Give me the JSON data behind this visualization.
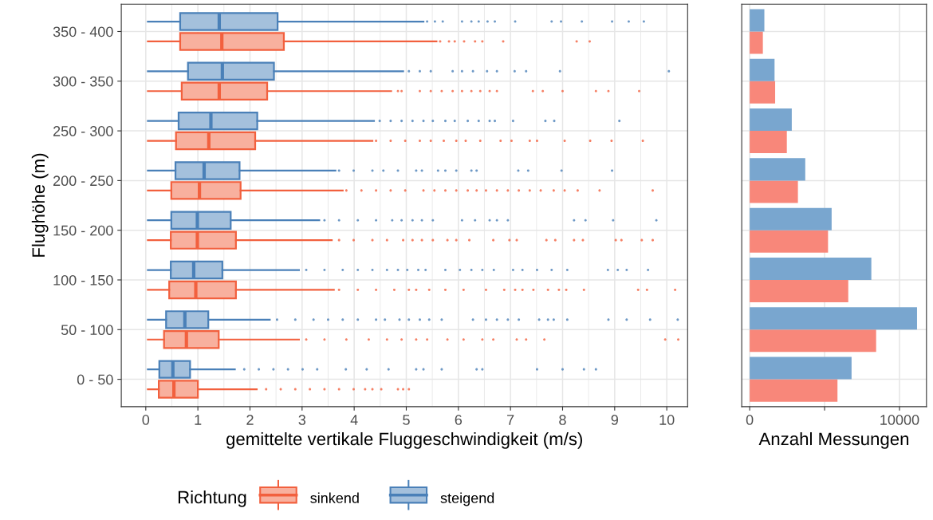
{
  "chart_data": [
    {
      "type": "box",
      "orientation": "horizontal",
      "xlabel": "gemittelte vertikale Fluggeschwindigkeit (m/s)",
      "ylabel": "Flughöhe (m)",
      "legend_title": "Richtung",
      "legend": "bottom",
      "grid": true,
      "categories": [
        "350 - 400",
        "300 - 350",
        "250 - 300",
        "200 - 250",
        "150 - 200",
        "100 - 150",
        "50 - 100",
        "0 - 50"
      ],
      "xlim": [
        -0.47,
        10.4
      ],
      "xticks": [
        0,
        1,
        2,
        3,
        4,
        5,
        6,
        7,
        8,
        9,
        10
      ],
      "series": [
        {
          "name": "sinkend",
          "color": "#f2603e",
          "boxes": [
            {
              "low": 0.04,
              "q1": 0.66,
              "median": 1.46,
              "q3": 2.65,
              "high": 5.58,
              "outliers": [
                5.65,
                5.82,
                5.93,
                6.11,
                6.32,
                6.46,
                6.86,
                8.27,
                8.52
              ]
            },
            {
              "low": 0.04,
              "q1": 0.69,
              "median": 1.41,
              "q3": 2.33,
              "high": 4.71,
              "outliers": [
                4.84,
                4.91,
                5.26,
                5.47,
                5.68,
                5.89,
                6.07,
                6.25,
                6.42,
                6.6,
                6.74,
                7.43,
                7.62,
                8.0,
                8.64,
                8.88,
                9.47
              ]
            },
            {
              "low": 0.04,
              "q1": 0.58,
              "median": 1.21,
              "q3": 2.1,
              "high": 4.35,
              "outliers": [
                4.42,
                4.7,
                4.98,
                5.26,
                5.47,
                5.72,
                5.96,
                6.14,
                6.42,
                6.81,
                7.02,
                7.37,
                7.51,
                8.04,
                8.53,
                8.94,
                9.54
              ]
            },
            {
              "low": 0.04,
              "q1": 0.49,
              "median": 1.03,
              "q3": 1.82,
              "high": 3.78,
              "outliers": [
                3.85,
                4.14,
                4.42,
                4.7,
                4.98,
                5.33,
                5.54,
                5.75,
                5.96,
                6.18,
                6.35,
                6.53,
                6.74,
                6.95,
                7.16,
                7.37,
                7.58,
                7.83,
                8.04,
                8.29,
                8.71,
                9.73
              ]
            },
            {
              "low": 0.04,
              "q1": 0.48,
              "median": 0.99,
              "q3": 1.73,
              "high": 3.57,
              "outliers": [
                3.71,
                3.99,
                4.35,
                4.63,
                4.94,
                5.12,
                5.3,
                5.51,
                5.79,
                5.96,
                6.21,
                6.67,
                6.98,
                7.12,
                7.69,
                7.86,
                8.22,
                8.39,
                9.02,
                9.13,
                9.52,
                9.73
              ]
            },
            {
              "low": 0.04,
              "q1": 0.45,
              "median": 0.96,
              "q3": 1.73,
              "high": 3.61,
              "outliers": [
                3.71,
                4.07,
                4.42,
                4.77,
                5.05,
                5.19,
                5.44,
                5.75,
                6.1,
                6.53,
                6.88,
                7.09,
                7.23,
                7.44,
                7.72,
                7.93,
                8.07,
                8.41,
                9.45,
                9.62,
                10.16
              ]
            },
            {
              "low": 0.04,
              "q1": 0.35,
              "median": 0.78,
              "q3": 1.4,
              "high": 2.94,
              "outliers": [
                3.08,
                3.43,
                3.85,
                4.28,
                4.63,
                4.91,
                5.19,
                5.4,
                5.79,
                6.1,
                6.46,
                6.67,
                7.12,
                7.3,
                7.65,
                9.97,
                10.22
              ]
            },
            {
              "low": 0.04,
              "q1": 0.25,
              "median": 0.54,
              "q3": 1.0,
              "high": 2.13,
              "outliers": [
                2.31,
                2.59,
                2.87,
                3.15,
                3.43,
                3.71,
                3.99,
                4.21,
                4.35,
                4.52,
                4.84,
                4.94,
                5.05
              ]
            }
          ]
        },
        {
          "name": "steigend",
          "color": "#4a80b8",
          "boxes": [
            {
              "low": 0.04,
              "q1": 0.66,
              "median": 1.41,
              "q3": 2.53,
              "high": 5.33,
              "outliers": [
                5.4,
                5.55,
                5.7,
                6.07,
                6.25,
                6.39,
                6.56,
                6.7,
                7.09,
                7.79,
                7.97,
                8.37,
                8.95,
                9.27,
                9.56
              ]
            },
            {
              "low": 0.04,
              "q1": 0.81,
              "median": 1.47,
              "q3": 2.46,
              "high": 4.94,
              "outliers": [
                5.05,
                5.26,
                5.47,
                5.89,
                6.07,
                6.28,
                6.55,
                6.74,
                7.08,
                7.3,
                7.95,
                10.04
              ]
            },
            {
              "low": 0.04,
              "q1": 0.63,
              "median": 1.25,
              "q3": 2.14,
              "high": 4.38,
              "outliers": [
                4.49,
                4.7,
                4.91,
                5.12,
                5.33,
                5.51,
                5.75,
                5.93,
                6.18,
                6.39,
                6.6,
                6.7,
                7.05,
                7.67,
                7.84,
                9.09
              ]
            },
            {
              "low": 0.04,
              "q1": 0.57,
              "median": 1.12,
              "q3": 1.8,
              "high": 3.64,
              "outliers": [
                3.71,
                3.99,
                4.35,
                4.56,
                4.84,
                5.19,
                5.3,
                5.61,
                5.75,
                5.96,
                6.25,
                6.35,
                7.15,
                7.34,
                7.98,
                8.95
              ]
            },
            {
              "low": 0.04,
              "q1": 0.49,
              "median": 0.99,
              "q3": 1.63,
              "high": 3.33,
              "outliers": [
                3.43,
                3.71,
                4.07,
                4.42,
                4.73,
                4.91,
                5.12,
                5.3,
                5.51,
                6.07,
                6.32,
                6.6,
                6.74,
                6.95,
                8.22,
                8.44,
                8.97,
                9.8
              ]
            },
            {
              "low": 0.04,
              "q1": 0.48,
              "median": 0.92,
              "q3": 1.47,
              "high": 2.94,
              "outliers": [
                3.08,
                3.43,
                3.78,
                4.07,
                4.35,
                4.63,
                4.84,
                5.02,
                5.23,
                5.37,
                5.75,
                6.03,
                6.25,
                6.46,
                6.68,
                7.05,
                7.23,
                7.51,
                7.79,
                8.09,
                8.87,
                9.06,
                9.23,
                9.64
              ]
            },
            {
              "low": 0.04,
              "q1": 0.39,
              "median": 0.75,
              "q3": 1.2,
              "high": 2.38,
              "outliers": [
                2.52,
                2.87,
                3.22,
                3.5,
                3.78,
                4.07,
                4.42,
                4.59,
                4.87,
                5.05,
                5.26,
                5.44,
                5.68,
                6.28,
                6.53,
                6.74,
                6.95,
                7.16,
                7.55,
                7.72,
                7.83,
                8.09,
                8.88,
                9.23,
                9.68,
                10.21
              ]
            },
            {
              "low": 0.04,
              "q1": 0.26,
              "median": 0.52,
              "q3": 0.85,
              "high": 1.71,
              "outliers": [
                1.89,
                2.17,
                2.45,
                2.73,
                3.01,
                3.29,
                3.84,
                4.24,
                4.66,
                5.19,
                5.33,
                5.68,
                6.35,
                6.46,
                7.51,
                8.0,
                8.41,
                8.64
              ]
            }
          ]
        }
      ]
    },
    {
      "type": "bar",
      "orientation": "horizontal",
      "xlabel": "Anzahl Messungen",
      "grid": true,
      "tick_labels": "x",
      "categories": [
        null,
        null,
        null,
        null,
        null,
        null,
        null,
        null
      ],
      "xlim": [
        -530,
        11800
      ],
      "xticks": [
        0,
        {
          "value": 5000,
          "label": null
        },
        10000
      ],
      "series": [
        {
          "color": "#f8877a",
          "values": [
            880,
            1700,
            2480,
            3220,
            5230,
            6580,
            8440,
            5860
          ]
        },
        {
          "color": "#79a6cf",
          "values": [
            980,
            1660,
            2810,
            3710,
            5470,
            8120,
            11170,
            6800
          ]
        }
      ]
    }
  ]
}
